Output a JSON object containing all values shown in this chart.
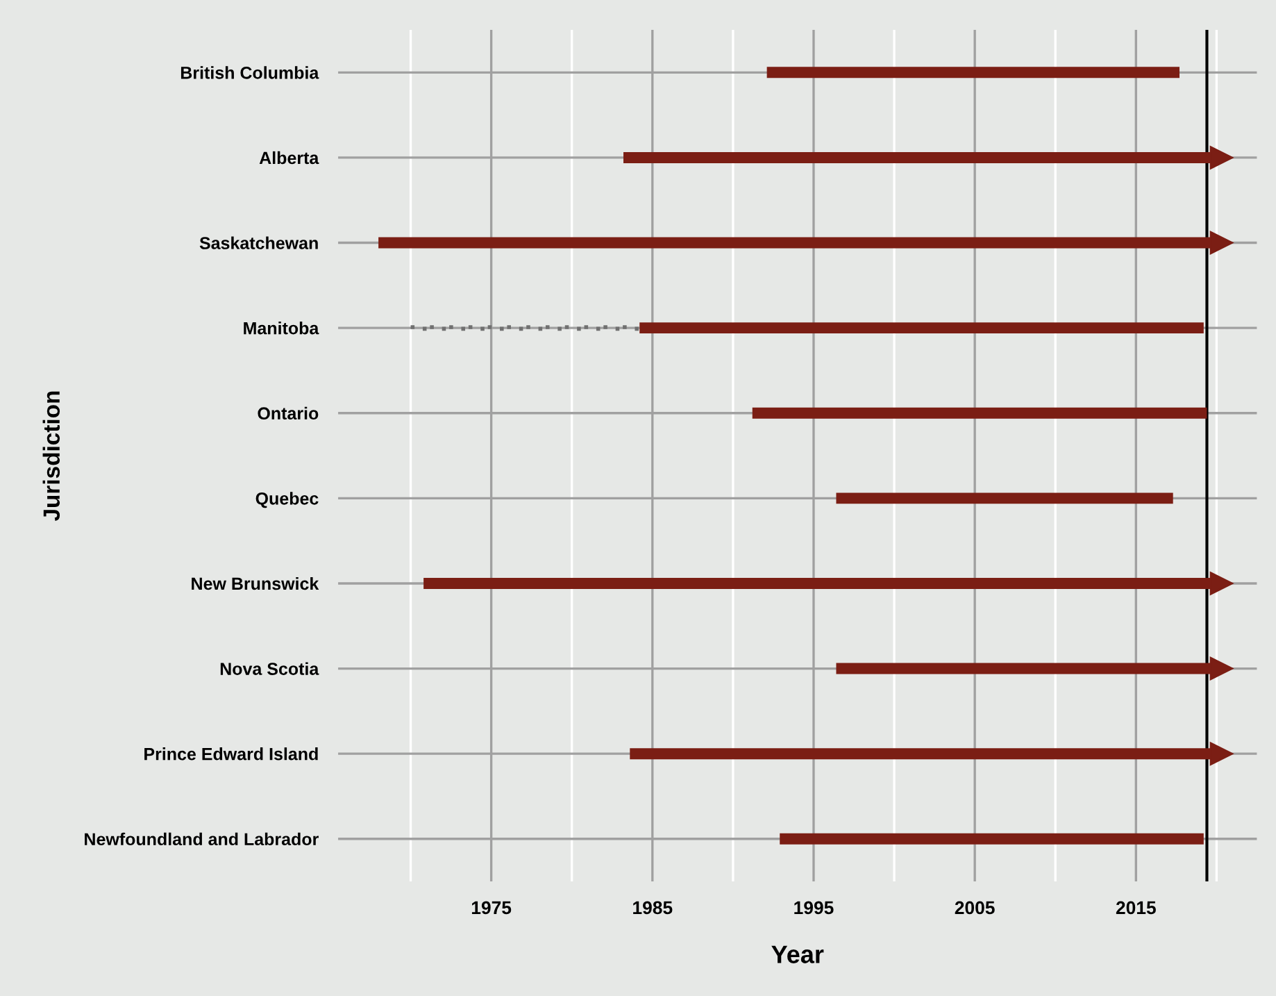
{
  "chart_data": {
    "type": "bar",
    "orientation": "horizontal",
    "xlabel": "Year",
    "ylabel": "Jurisdiction",
    "categories": [
      "British Columbia",
      "Alberta",
      "Saskatchewan",
      "Manitoba",
      "Ontario",
      "Quebec",
      "New Brunswick",
      "Nova Scotia",
      "Prince Edward Island",
      "Newfoundland and Labrador"
    ],
    "series": [
      {
        "line_style": "dotted",
        "color": "#707070",
        "base": [
          null,
          null,
          null,
          1970,
          null,
          null,
          null,
          null,
          null,
          null
        ],
        "values": [
          null,
          null,
          null,
          14.2,
          null,
          null,
          null,
          null,
          null,
          null
        ]
      },
      {
        "line_style": "solid",
        "color": "#7b1e14",
        "base": [
          1992.1,
          1983.2,
          1968.0,
          1984.2,
          1991.2,
          1996.4,
          1970.8,
          1996.4,
          1983.6,
          1992.9
        ],
        "values": [
          25.6,
          36.5,
          51.7,
          35.0,
          28.2,
          20.9,
          48.9,
          23.3,
          36.1,
          26.3
        ]
      },
      {
        "type": "scatter",
        "marker": "triangle",
        "color": "#7b1e14",
        "values": [
          null,
          2020.3,
          2020.3,
          null,
          null,
          null,
          2020.3,
          2020.3,
          2020.3,
          null
        ]
      }
    ],
    "xlim": [
      1965.5,
      2022.5
    ],
    "xticks": [
      1975,
      1985,
      1995,
      2005,
      2015
    ],
    "ref_lines": [
      {
        "axis": "x",
        "value": 2019.4,
        "label": null,
        "color": "#000000"
      }
    ],
    "grid": true
  }
}
